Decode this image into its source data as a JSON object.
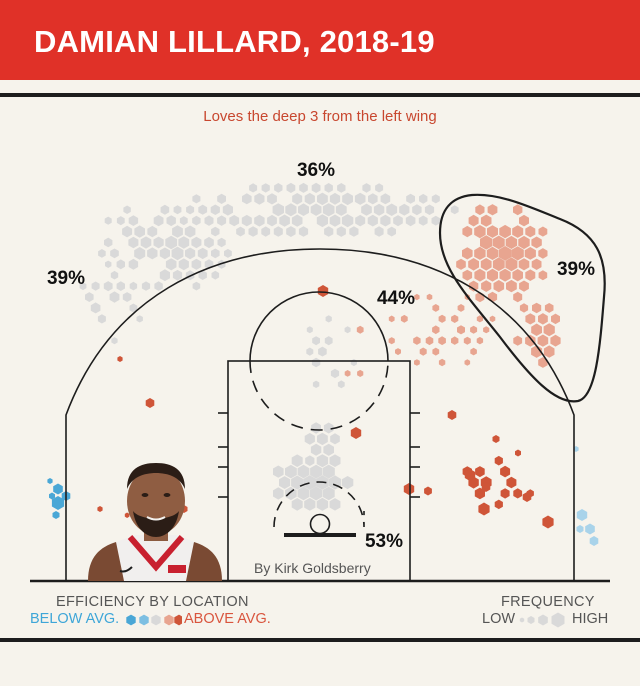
{
  "header": {
    "title": "DAMIAN LILLARD, 2018-19"
  },
  "subtitle": "Loves the deep 3 from the left wing",
  "credit": "By Kirk Goldsberry",
  "colors": {
    "header_bg": "#e03128",
    "background": "#f6f3ec",
    "below_avg": "#4aa7d6",
    "light_below": "#a9d3ea",
    "average": "#d9d9d9",
    "light_above": "#e8a590",
    "above_avg": "#cf5538"
  },
  "legend": {
    "efficiency_title": "EFFICIENCY BY LOCATION",
    "below_label": "BELOW AVG.",
    "above_label": "ABOVE AVG.",
    "frequency_title": "FREQUENCY",
    "low_label": "LOW",
    "high_label": "HIGH"
  },
  "player_photo": {
    "icon": "player-portrait-icon"
  },
  "chart_data": {
    "type": "heatmap",
    "title": "DAMIAN LILLARD, 2018-19",
    "subtitle": "Loves the deep 3 from the left wing",
    "encoding": {
      "color": "efficiency by location",
      "size": "frequency"
    },
    "zone_labels": [
      {
        "zone": "left corner 3",
        "value": "39%"
      },
      {
        "zone": "top of key 3",
        "value": "36%"
      },
      {
        "zone": "left wing mid-range",
        "value": "44%"
      },
      {
        "zone": "left wing deep 3",
        "value": "39%"
      },
      {
        "zone": "at the rim",
        "value": "53%"
      }
    ],
    "highlight": "left wing deep 3"
  }
}
